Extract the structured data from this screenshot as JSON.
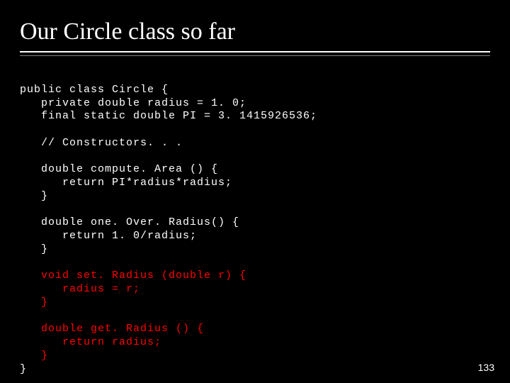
{
  "slide": {
    "title": "Our Circle class so far",
    "page_number": "133",
    "text_color": "#ffffff",
    "highlight_color": "#ff0000",
    "background_color": "#000000",
    "title_fontsize": 34,
    "code_fontsize": 15,
    "code": {
      "l01": "public class Circle {",
      "l02": "   private double radius = 1. 0;",
      "l03": "   final static double PI = 3. 1415926536;",
      "l04": "",
      "l05": "   // Constructors. . .",
      "l06": "",
      "l07": "   double compute. Area () {",
      "l08": "      return PI*radius*radius;",
      "l09": "   }",
      "l10": "",
      "l11": "   double one. Over. Radius() {",
      "l12": "      return 1. 0/radius;",
      "l13": "   }",
      "l14": "",
      "l15": "   void set. Radius (double r) {",
      "l16": "      radius = r;",
      "l17": "   }",
      "l18": "",
      "l19": "   double get. Radius () {",
      "l20": "      return radius;",
      "l21": "   }",
      "l22": "}"
    }
  }
}
